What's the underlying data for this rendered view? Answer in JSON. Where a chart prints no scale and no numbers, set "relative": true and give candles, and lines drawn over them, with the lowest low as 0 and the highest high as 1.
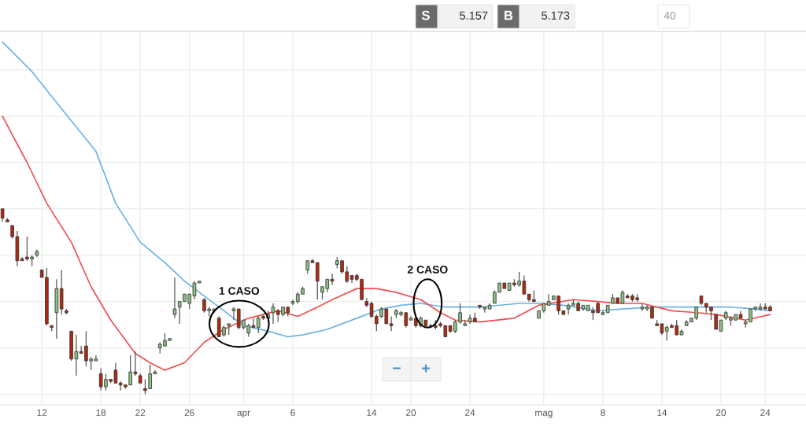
{
  "chart_data": {
    "type": "candlestick",
    "relative": true,
    "grid": true,
    "categories": [
      null,
      null,
      null,
      null,
      null,
      null,
      null,
      null,
      "12",
      null,
      null,
      null,
      null,
      null,
      null,
      null,
      null,
      null,
      null,
      null,
      "18",
      null,
      null,
      null,
      null,
      null,
      null,
      null,
      "22",
      null,
      null,
      null,
      null,
      null,
      null,
      null,
      null,
      null,
      "26",
      null,
      null,
      null,
      null,
      null,
      null,
      null,
      null,
      null,
      null,
      "apr",
      null,
      null,
      null,
      null,
      null,
      null,
      null,
      null,
      null,
      "6",
      null,
      null,
      null,
      null,
      null,
      null,
      null,
      null,
      null,
      null,
      null,
      null,
      null,
      null,
      null,
      "14",
      null,
      null,
      null,
      null,
      null,
      null,
      null,
      "20",
      null,
      null,
      null,
      null,
      null,
      null,
      null,
      null,
      null,
      null,
      null,
      "24",
      null,
      null,
      null,
      null,
      null,
      null,
      null,
      null,
      null,
      null,
      null,
      null,
      null,
      null,
      "mag",
      null,
      null,
      null,
      null,
      null,
      null,
      null,
      null,
      null,
      null,
      null,
      "8",
      null,
      null,
      null,
      null,
      null,
      null,
      null,
      null,
      null,
      null,
      null,
      "14",
      null,
      null,
      null,
      null,
      null,
      null,
      null,
      null,
      null,
      null,
      null,
      "20",
      null,
      null,
      null,
      null,
      null,
      null,
      null,
      null,
      "24",
      null
    ],
    "ohlc": [
      [
        1.0,
        1.0,
        0.93,
        0.95
      ],
      [
        0.94,
        0.95,
        0.93,
        0.93
      ],
      [
        0.91,
        0.91,
        0.84,
        0.85
      ],
      [
        0.85,
        0.88,
        0.69,
        0.72
      ],
      [
        0.73,
        0.74,
        0.72,
        0.72
      ],
      [
        0.74,
        0.85,
        0.72,
        0.73
      ],
      [
        0.73,
        0.75,
        0.69,
        0.74
      ],
      [
        0.75,
        0.78,
        0.74,
        0.77
      ],
      [
        0.67,
        0.67,
        0.63,
        0.63
      ],
      [
        0.63,
        0.68,
        0.37,
        0.38
      ],
      [
        0.37,
        0.37,
        0.34,
        0.36
      ],
      [
        0.44,
        0.62,
        0.3,
        0.57
      ],
      [
        0.57,
        0.67,
        0.43,
        0.46
      ],
      [
        0.45,
        0.46,
        0.43,
        0.44
      ],
      [
        0.34,
        0.34,
        0.18,
        0.19
      ],
      [
        0.19,
        0.32,
        0.1,
        0.23
      ],
      [
        0.23,
        0.26,
        0.22,
        0.22
      ],
      [
        0.26,
        0.34,
        0.15,
        0.18
      ],
      [
        0.18,
        0.2,
        0.13,
        0.19
      ],
      [
        0.18,
        0.21,
        0.18,
        0.19
      ],
      [
        0.11,
        0.14,
        0.02,
        0.04
      ],
      [
        0.04,
        0.11,
        0.02,
        0.08
      ],
      [
        0.08,
        0.08,
        0.06,
        0.07
      ],
      [
        0.13,
        0.17,
        0.06,
        0.06
      ],
      [
        0.06,
        0.07,
        0.02,
        0.05
      ],
      [
        0.05,
        0.05,
        0.03,
        0.04
      ],
      [
        0.05,
        0.21,
        0.05,
        0.12
      ],
      [
        0.12,
        0.23,
        0.1,
        0.11
      ],
      [
        0.1,
        0.11,
        0.06,
        0.06
      ],
      [
        0.03,
        0.08,
        0.0,
        0.02
      ],
      [
        0.03,
        0.16,
        0.03,
        0.11
      ],
      [
        0.11,
        0.13,
        0.11,
        0.12
      ],
      [
        0.25,
        0.28,
        0.22,
        0.27
      ],
      [
        0.26,
        0.33,
        0.26,
        0.29
      ],
      [
        0.29,
        0.3,
        0.29,
        0.3
      ],
      [
        0.43,
        0.63,
        0.41,
        0.46
      ],
      [
        0.47,
        0.5,
        0.38,
        0.5
      ],
      [
        0.5,
        0.54,
        0.5,
        0.54
      ],
      [
        0.49,
        0.54,
        0.46,
        0.54
      ],
      [
        0.53,
        0.61,
        0.51,
        0.6
      ],
      [
        0.6,
        0.61,
        0.6,
        0.61
      ],
      [
        0.51,
        0.52,
        0.44,
        0.45
      ],
      [
        0.45,
        0.47,
        0.42,
        0.46
      ],
      [
        0.45,
        0.46,
        0.44,
        0.46
      ],
      [
        0.41,
        0.42,
        0.31,
        0.31
      ],
      [
        0.32,
        0.37,
        0.31,
        0.36
      ],
      [
        0.37,
        0.38,
        0.32,
        0.38
      ],
      [
        0.45,
        0.47,
        0.4,
        0.46
      ],
      [
        0.46,
        0.46,
        0.35,
        0.36
      ],
      [
        0.36,
        0.4,
        0.35,
        0.4
      ],
      [
        0.33,
        0.38,
        0.31,
        0.37
      ],
      [
        0.37,
        0.41,
        0.36,
        0.36
      ],
      [
        0.36,
        0.42,
        0.33,
        0.41
      ],
      [
        0.42,
        0.43,
        0.4,
        0.41
      ],
      [
        0.41,
        0.45,
        0.4,
        0.43
      ],
      [
        0.44,
        0.49,
        0.38,
        0.47
      ],
      [
        0.45,
        0.46,
        0.39,
        0.43
      ],
      [
        0.43,
        0.47,
        0.42,
        0.47
      ],
      [
        0.47,
        0.47,
        0.42,
        0.44
      ],
      [
        0.49,
        0.51,
        0.48,
        0.5
      ],
      [
        0.5,
        0.55,
        0.49,
        0.54
      ],
      [
        0.54,
        0.58,
        0.54,
        0.57
      ],
      [
        0.67,
        0.72,
        0.65,
        0.72
      ],
      [
        0.72,
        0.73,
        0.71,
        0.71
      ],
      [
        0.71,
        0.71,
        0.51,
        0.61
      ],
      [
        0.55,
        0.58,
        0.51,
        0.58
      ],
      [
        0.57,
        0.62,
        0.55,
        0.62
      ],
      [
        0.62,
        0.65,
        0.59,
        0.61
      ],
      [
        0.7,
        0.74,
        0.68,
        0.72
      ],
      [
        0.72,
        0.72,
        0.65,
        0.66
      ],
      [
        0.66,
        0.69,
        0.6,
        0.61
      ],
      [
        0.64,
        0.64,
        0.6,
        0.62
      ],
      [
        0.64,
        0.65,
        0.61,
        0.62
      ],
      [
        0.62,
        0.62,
        0.51,
        0.51
      ],
      [
        0.5,
        0.52,
        0.47,
        0.48
      ],
      [
        0.49,
        0.5,
        0.41,
        0.42
      ],
      [
        0.42,
        0.43,
        0.34,
        0.38
      ],
      [
        0.42,
        0.47,
        0.41,
        0.46
      ],
      [
        0.46,
        0.46,
        0.38,
        0.38
      ],
      [
        0.38,
        0.42,
        0.34,
        0.37
      ],
      [
        0.43,
        0.46,
        0.41,
        0.45
      ],
      [
        0.43,
        0.45,
        0.42,
        0.44
      ],
      [
        0.44,
        0.44,
        0.36,
        0.37
      ],
      [
        0.4,
        0.42,
        0.4,
        0.41
      ],
      [
        0.41,
        0.41,
        0.36,
        0.37
      ],
      [
        0.37,
        0.42,
        0.36,
        0.41
      ],
      [
        0.4,
        0.4,
        0.37,
        0.37
      ],
      [
        0.37,
        0.38,
        0.36,
        0.37
      ],
      [
        0.37,
        0.4,
        0.35,
        0.36
      ],
      [
        0.38,
        0.39,
        0.36,
        0.37
      ],
      [
        0.37,
        0.37,
        0.31,
        0.31
      ],
      [
        0.37,
        0.37,
        0.33,
        0.34
      ],
      [
        0.34,
        0.4,
        0.33,
        0.39
      ],
      [
        0.39,
        0.49,
        0.38,
        0.44
      ],
      [
        0.37,
        0.4,
        0.37,
        0.38
      ],
      [
        0.39,
        0.43,
        0.38,
        0.41
      ],
      [
        0.41,
        0.44,
        0.39,
        0.39
      ],
      [
        0.48,
        0.48,
        0.46,
        0.47
      ],
      [
        0.46,
        0.47,
        0.44,
        0.47
      ],
      [
        0.46,
        0.49,
        0.46,
        0.48
      ],
      [
        0.49,
        0.56,
        0.49,
        0.55
      ],
      [
        0.55,
        0.6,
        0.55,
        0.6
      ],
      [
        0.6,
        0.6,
        0.57,
        0.57
      ],
      [
        0.56,
        0.6,
        0.56,
        0.6
      ],
      [
        0.6,
        0.62,
        0.58,
        0.59
      ],
      [
        0.59,
        0.66,
        0.58,
        0.61
      ],
      [
        0.61,
        0.64,
        0.54,
        0.54
      ],
      [
        0.54,
        0.54,
        0.5,
        0.51
      ],
      [
        0.51,
        0.56,
        0.5,
        0.5
      ],
      [
        0.41,
        0.45,
        0.41,
        0.45
      ],
      [
        0.45,
        0.49,
        0.44,
        0.49
      ],
      [
        0.48,
        0.54,
        0.48,
        0.5
      ],
      [
        0.51,
        0.53,
        0.51,
        0.53
      ],
      [
        0.53,
        0.53,
        0.43,
        0.45
      ],
      [
        0.45,
        0.45,
        0.43,
        0.43
      ],
      [
        0.46,
        0.49,
        0.43,
        0.48
      ],
      [
        0.48,
        0.51,
        0.48,
        0.49
      ],
      [
        0.49,
        0.5,
        0.45,
        0.45
      ],
      [
        0.46,
        0.48,
        0.45,
        0.48
      ],
      [
        0.45,
        0.48,
        0.45,
        0.48
      ],
      [
        0.45,
        0.47,
        0.4,
        0.44
      ],
      [
        0.49,
        0.5,
        0.44,
        0.44
      ],
      [
        0.43,
        0.45,
        0.43,
        0.44
      ],
      [
        0.44,
        0.48,
        0.44,
        0.48
      ],
      [
        0.49,
        0.54,
        0.49,
        0.52
      ],
      [
        0.52,
        0.52,
        0.49,
        0.49
      ],
      [
        0.49,
        0.56,
        0.49,
        0.55
      ],
      [
        0.53,
        0.54,
        0.52,
        0.52
      ],
      [
        0.53,
        0.54,
        0.5,
        0.51
      ],
      [
        0.52,
        0.54,
        0.5,
        0.51
      ],
      [
        0.46,
        0.49,
        0.45,
        0.47
      ],
      [
        0.46,
        0.48,
        0.45,
        0.47
      ],
      [
        0.47,
        0.47,
        0.41,
        0.41
      ],
      [
        0.38,
        0.4,
        0.37,
        0.37
      ],
      [
        0.38,
        0.38,
        0.32,
        0.33
      ],
      [
        0.34,
        0.37,
        0.29,
        0.36
      ],
      [
        0.37,
        0.38,
        0.36,
        0.36
      ],
      [
        0.37,
        0.4,
        0.32,
        0.32
      ],
      [
        0.32,
        0.35,
        0.32,
        0.34
      ],
      [
        0.37,
        0.4,
        0.37,
        0.39
      ],
      [
        0.39,
        0.41,
        0.39,
        0.41
      ],
      [
        0.41,
        0.47,
        0.4,
        0.47
      ],
      [
        0.53,
        0.53,
        0.48,
        0.49
      ],
      [
        0.49,
        0.49,
        0.44,
        0.47
      ],
      [
        0.47,
        0.47,
        0.4,
        0.45
      ],
      [
        0.43,
        0.43,
        0.35,
        0.35
      ],
      [
        0.34,
        0.4,
        0.34,
        0.4
      ],
      [
        0.41,
        0.45,
        0.4,
        0.44
      ],
      [
        0.4,
        0.42,
        0.37,
        0.41
      ],
      [
        0.4,
        0.43,
        0.4,
        0.43
      ],
      [
        0.43,
        0.45,
        0.41,
        0.41
      ],
      [
        0.38,
        0.4,
        0.36,
        0.39
      ],
      [
        0.39,
        0.46,
        0.39,
        0.46
      ],
      [
        0.46,
        0.47,
        0.45,
        0.47
      ],
      [
        0.46,
        0.49,
        0.45,
        0.47
      ],
      [
        0.47,
        0.49,
        0.46,
        0.46
      ],
      [
        0.47,
        0.48,
        0.45,
        0.45
      ]
    ],
    "series": [
      {
        "type": "line",
        "color": "#6ab3e3",
        "values": [
          1.9,
          null,
          null,
          null,
          null,
          null,
          1.74,
          null,
          null,
          null,
          null,
          null,
          1.54,
          null,
          null,
          null,
          null,
          null,
          null,
          1.31,
          null,
          null,
          null,
          1.03,
          null,
          null,
          null,
          null,
          0.82,
          null,
          null,
          null,
          null,
          0.71,
          null,
          null,
          null,
          0.61,
          null,
          null,
          null,
          0.53,
          null,
          null,
          0.47,
          null,
          null,
          null,
          null,
          0.37,
          null,
          null,
          null,
          null,
          0.34,
          null,
          null,
          null,
          0.31,
          null,
          null,
          0.32,
          null,
          null,
          null,
          null,
          0.35,
          null,
          null,
          null,
          null,
          null,
          0.41,
          null,
          null,
          null,
          null,
          0.46,
          null,
          null,
          null,
          0.48,
          null,
          null,
          null,
          0.49,
          null,
          null,
          null,
          null,
          0.47,
          null,
          null,
          null,
          null,
          null,
          null,
          0.47,
          null,
          null,
          null,
          null,
          null,
          null,
          null,
          0.49,
          null,
          null,
          null,
          0.49,
          null,
          null,
          null,
          null,
          0.48,
          null,
          null,
          null,
          null,
          null,
          null,
          0.45,
          null,
          null,
          null,
          null,
          0.46,
          null,
          null,
          null,
          null,
          null,
          0.47,
          null,
          null,
          null,
          null,
          null,
          null,
          null,
          0.47,
          null,
          null,
          null,
          null,
          null,
          null,
          null,
          0.47,
          null,
          null,
          null,
          null,
          0.46,
          null,
          null,
          0.45
        ]
      },
      {
        "type": "line",
        "color": "#f04f4f",
        "values": [
          1.5,
          null,
          null,
          null,
          null,
          1.25,
          null,
          null,
          null,
          1.03,
          null,
          null,
          null,
          null,
          0.82,
          null,
          null,
          null,
          0.58,
          null,
          null,
          null,
          0.4,
          null,
          null,
          null,
          null,
          0.22,
          null,
          null,
          0.17,
          null,
          null,
          0.13,
          null,
          null,
          null,
          0.17,
          null,
          null,
          null,
          0.28,
          null,
          null,
          null,
          0.35,
          null,
          null,
          null,
          null,
          0.41,
          null,
          null,
          null,
          null,
          null,
          0.45,
          null,
          null,
          null,
          0.42,
          null,
          null,
          null,
          0.47,
          null,
          null,
          0.51,
          null,
          null,
          null,
          null,
          0.57,
          null,
          null,
          null,
          0.57,
          null,
          null,
          null,
          0.55,
          null,
          null,
          null,
          null,
          0.51,
          null,
          null,
          null,
          0.44,
          null,
          null,
          0.4,
          null,
          null,
          null,
          null,
          0.39,
          null,
          null,
          null,
          null,
          null,
          null,
          0.41,
          null,
          null,
          null,
          null,
          0.48,
          null,
          null,
          null,
          null,
          null,
          null,
          0.51,
          null,
          null,
          null,
          null,
          0.5,
          null,
          null,
          null,
          0.49,
          null,
          null,
          null,
          null,
          0.49,
          null,
          null,
          null,
          null,
          null,
          0.45,
          null,
          null,
          null,
          null,
          0.44,
          null,
          null,
          null,
          0.43,
          null,
          null,
          null,
          null,
          null,
          0.4,
          null,
          null,
          null,
          null,
          0.43
        ]
      }
    ],
    "annotations": [
      "S",
      "5.157",
      "B",
      "5.173",
      "40",
      "−",
      "+",
      "1 CASO",
      "2 CASO"
    ]
  }
}
